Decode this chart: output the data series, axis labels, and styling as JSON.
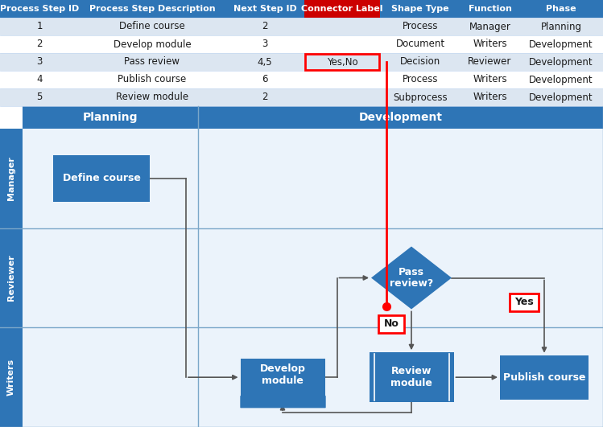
{
  "header_row": [
    "Process Step ID",
    "Process Step Description",
    "Next Step ID",
    "Connector Label",
    "Shape Type",
    "Function",
    "Phase"
  ],
  "rows": [
    [
      "1",
      "Define course",
      "2",
      "",
      "Process",
      "Manager",
      "Planning"
    ],
    [
      "2",
      "Develop module",
      "3",
      "",
      "Document",
      "Writers",
      "Development"
    ],
    [
      "3",
      "Pass review",
      "4,5",
      "Yes,No",
      "Decision",
      "Reviewer",
      "Development"
    ],
    [
      "4",
      "Publish course",
      "6",
      "",
      "Process",
      "Writers",
      "Development"
    ],
    [
      "5",
      "Review module",
      "2",
      "",
      "Subprocess",
      "Writers",
      "Development"
    ]
  ],
  "table_header_blue": "#2E75B6",
  "table_header_red": "#CC0000",
  "row_bg_light": "#DCE6F1",
  "row_bg_white": "#FFFFFF",
  "text_black": "#1A1A1A",
  "text_white": "#FFFFFF",
  "red": "#FF0000",
  "shape_blue": "#2E75B6",
  "diagram_bg": "#EBF3FB",
  "lane_blue": "#2E75B6",
  "arrow_color": "#555555",
  "phases": [
    "Planning",
    "Development"
  ],
  "lanes": [
    "Manager",
    "Reviewer",
    "Writers"
  ],
  "connector_label_col": 3,
  "connector_label_row": 2
}
